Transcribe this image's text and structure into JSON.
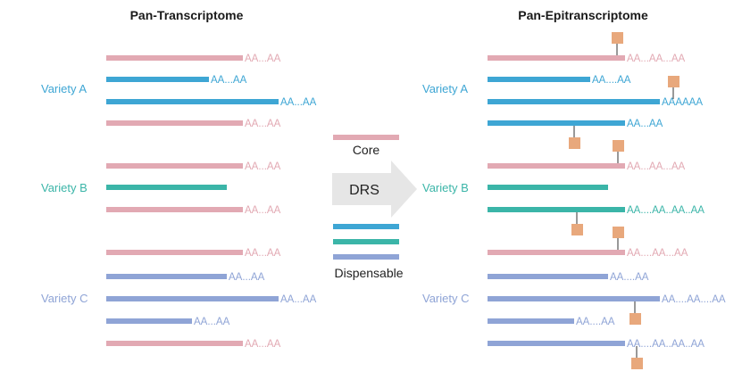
{
  "titles": {
    "left": "Pan-Transcriptome",
    "right": "Pan-Epitranscriptome"
  },
  "varieties": {
    "a": {
      "label": "Variety A",
      "color": "#3ea6d4"
    },
    "b": {
      "label": "Variety B",
      "color": "#3bb5a8"
    },
    "c": {
      "label": "Variety C",
      "color": "#8fa4d6"
    }
  },
  "legend": {
    "core": "Core",
    "dispensable": "Dispensable",
    "method": "DRS",
    "core_color": "#e2a9b3",
    "arrow_color": "#e6e6e6"
  },
  "colors": {
    "pink": "#e2a9b3",
    "blue": "#3ea6d4",
    "teal": "#3bb5a8",
    "lavender": "#8fa4d6",
    "modification": "#e8a87c",
    "stem": "#555555"
  },
  "left_transcripts": [
    {
      "color": "pink",
      "tail": "AA...AA"
    },
    {
      "color": "blue",
      "tail": "AA...AA"
    },
    {
      "color": "blue",
      "tail": "AA...AA"
    },
    {
      "color": "pink",
      "tail": "AA...AA"
    },
    {
      "color": "pink",
      "tail": "AA...AA"
    },
    {
      "color": "teal",
      "tail": ""
    },
    {
      "color": "pink",
      "tail": "AA...AA"
    },
    {
      "color": "pink",
      "tail": "AA...AA"
    },
    {
      "color": "lavender",
      "tail": "AA...AA"
    },
    {
      "color": "lavender",
      "tail": "AA...AA"
    },
    {
      "color": "lavender",
      "tail": "AA...AA"
    },
    {
      "color": "pink",
      "tail": "AA...AA"
    }
  ],
  "right_transcripts": [
    {
      "color": "pink",
      "tail": "AA...AA...AA",
      "mod": "above"
    },
    {
      "color": "blue",
      "tail": "AA....AA",
      "mod": ""
    },
    {
      "color": "blue",
      "tail": "AAAAAA",
      "mod": "above"
    },
    {
      "color": "blue",
      "tail": "AA...AA",
      "mod": "below"
    },
    {
      "color": "pink",
      "tail": "AA...AA...AA",
      "mod": "above"
    },
    {
      "color": "teal",
      "tail": "",
      "mod": ""
    },
    {
      "color": "teal",
      "tail": "AA....AA..AA..AA",
      "mod": "below"
    },
    {
      "color": "pink",
      "tail": "AA....AA...AA",
      "mod": "above"
    },
    {
      "color": "lavender",
      "tail": "AA....AA",
      "mod": ""
    },
    {
      "color": "lavender",
      "tail": "AA....AA....AA",
      "mod": "below"
    },
    {
      "color": "lavender",
      "tail": "AA....AA",
      "mod": ""
    },
    {
      "color": "lavender",
      "tail": "AA....AA..AA..AA",
      "mod": "below"
    }
  ]
}
